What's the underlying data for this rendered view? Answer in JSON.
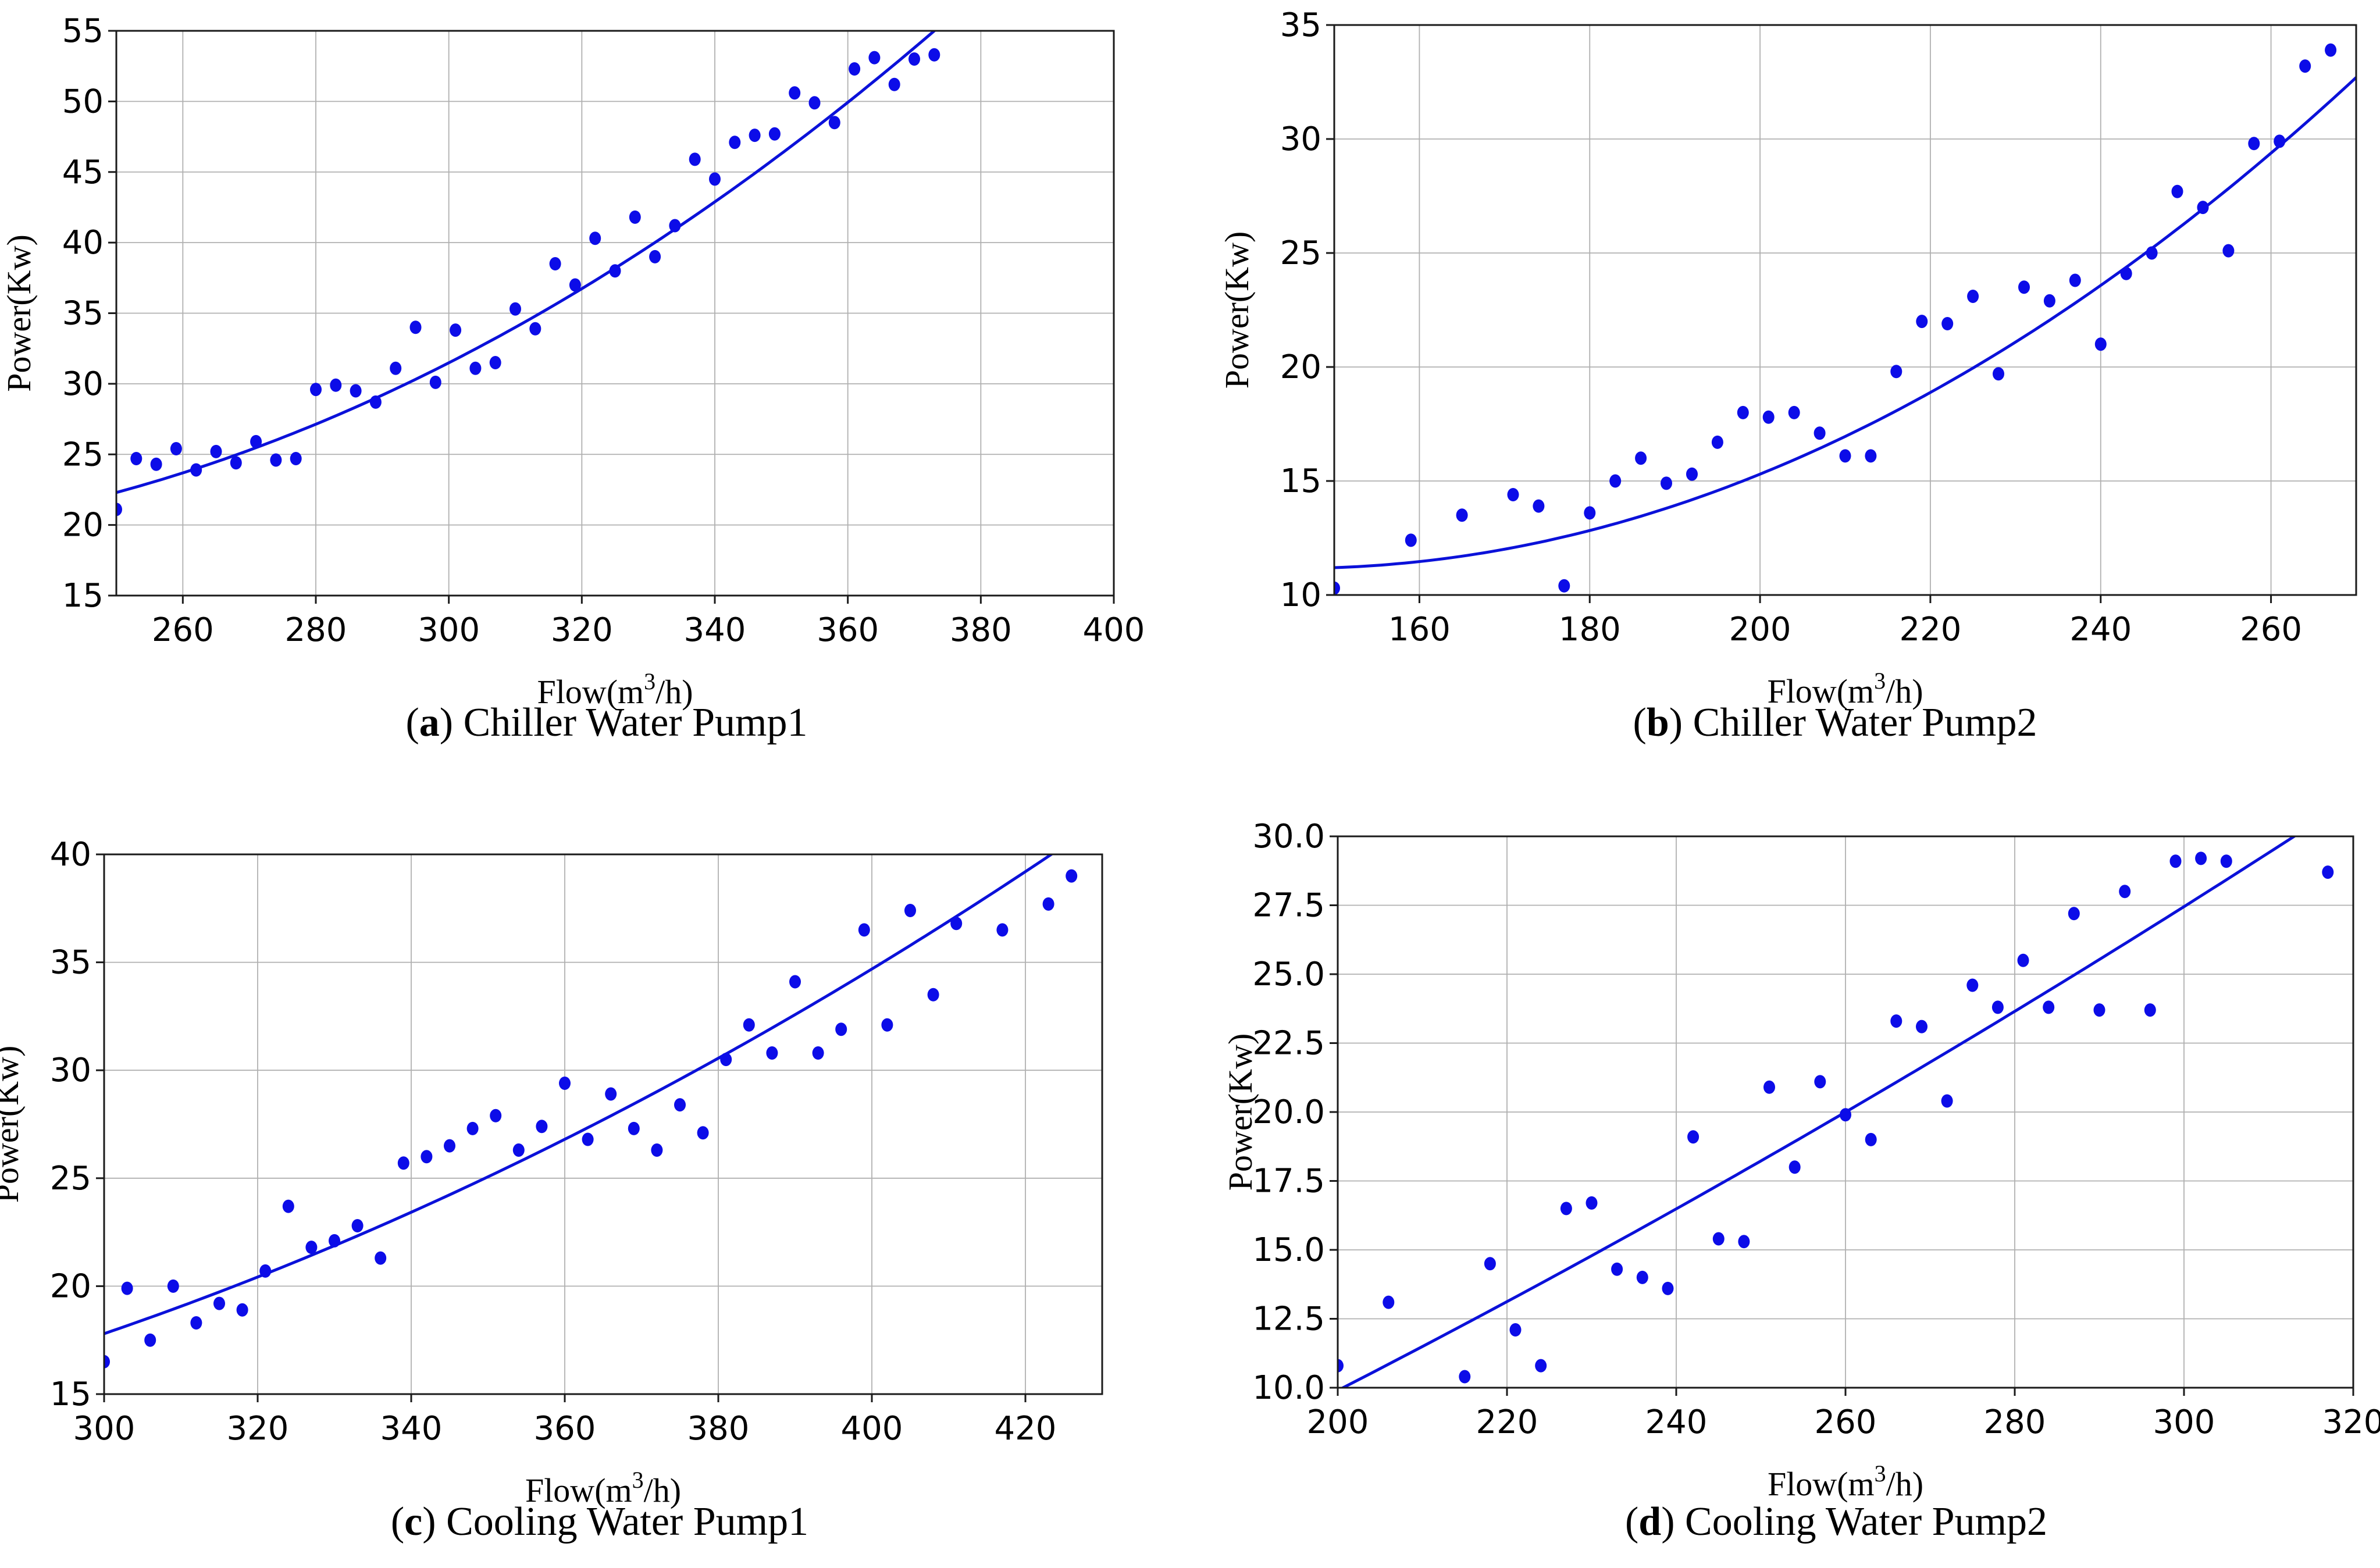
{
  "figure": {
    "background": "#ffffff",
    "grid": true,
    "legend": "none"
  },
  "colors": {
    "point": "#0c0ce8",
    "curve": "#0b11d9",
    "grid": "#b0b0b0",
    "spine": "#1a1a1a",
    "text": "#000000"
  },
  "chart_data": [
    {
      "id": "a",
      "type": "scatter",
      "caption": {
        "open": "(",
        "letter": "a",
        "close": ")",
        "title": " Chiller Water Pump1"
      },
      "xlabel": {
        "pre": "Flow(m",
        "sup": "3",
        "post": "/h)"
      },
      "ylabel": "Power(Kw)",
      "xlim": [
        250,
        400
      ],
      "ylim": [
        15,
        55
      ],
      "xticks": [
        260,
        280,
        300,
        320,
        340,
        360,
        380,
        400
      ],
      "xtick_labels": [
        "260",
        "280",
        "300",
        "320",
        "340",
        "360",
        "380",
        "400"
      ],
      "yticks": [
        15,
        20,
        25,
        30,
        35,
        40,
        45,
        50,
        55
      ],
      "ytick_labels": [
        "15",
        "20",
        "25",
        "30",
        "35",
        "40",
        "45",
        "50",
        "55"
      ],
      "fit": {
        "x0": 250,
        "a": 0.0011247,
        "b": 0.1275,
        "c": 22.3
      },
      "points": {
        "x": [
          250,
          253,
          256,
          259,
          262,
          265,
          268,
          271,
          274,
          277,
          280,
          283,
          286,
          289,
          292,
          295,
          298,
          301,
          304,
          307,
          310,
          313,
          316,
          319,
          322,
          325,
          328,
          331,
          334,
          337,
          340,
          343,
          346,
          349,
          352,
          355,
          358,
          361,
          364,
          367,
          370,
          373
        ],
        "y": [
          21.1,
          24.7,
          24.3,
          25.4,
          23.9,
          25.2,
          24.4,
          25.9,
          24.6,
          24.7,
          29.6,
          29.9,
          29.5,
          28.7,
          31.1,
          34.0,
          30.1,
          33.8,
          31.1,
          31.5,
          35.3,
          33.9,
          38.5,
          37.0,
          40.3,
          38.0,
          41.8,
          39.0,
          41.2,
          45.9,
          44.5,
          47.1,
          47.6,
          47.7,
          50.6,
          49.9,
          48.5,
          52.3,
          53.1,
          51.2,
          53.0,
          53.3
        ]
      }
    },
    {
      "id": "b",
      "type": "scatter",
      "caption": {
        "open": "(",
        "letter": "b",
        "close": ")",
        "title": " Chiller Water Pump2"
      },
      "xlabel": {
        "pre": "Flow(m",
        "sup": "3",
        "post": "/h)"
      },
      "ylabel": "Power(Kw)",
      "xlim": [
        150,
        270
      ],
      "ylim": [
        10,
        35
      ],
      "xticks": [
        160,
        180,
        200,
        220,
        240,
        260
      ],
      "xtick_labels": [
        "160",
        "180",
        "200",
        "220",
        "240",
        "260"
      ],
      "yticks": [
        10,
        15,
        20,
        25,
        30,
        35
      ],
      "ytick_labels": [
        "10",
        "15",
        "20",
        "25",
        "30",
        "35"
      ],
      "fit": {
        "x0": 150,
        "a": 0.001388,
        "b": 0.0126,
        "c": 11.2
      },
      "points": {
        "x": [
          150,
          159,
          165,
          171,
          174,
          177,
          180,
          183,
          186,
          189,
          192,
          195,
          198,
          201,
          204,
          207,
          210,
          213,
          216,
          219,
          222,
          225,
          228,
          231,
          234,
          237,
          240,
          243,
          246,
          249,
          252,
          255,
          258,
          261,
          264,
          267
        ],
        "y": [
          10.3,
          12.4,
          13.5,
          14.4,
          13.9,
          10.4,
          13.6,
          15.0,
          16.0,
          14.9,
          15.3,
          16.7,
          18.0,
          17.8,
          18.0,
          17.1,
          16.1,
          16.1,
          19.8,
          22.0,
          21.9,
          23.1,
          19.7,
          23.5,
          22.9,
          23.8,
          21.0,
          24.1,
          25.0,
          27.7,
          27.0,
          25.1,
          29.8,
          29.9,
          33.2,
          33.9
        ]
      }
    },
    {
      "id": "c",
      "type": "scatter",
      "caption": {
        "open": "(",
        "letter": "c",
        "close": ")",
        "title": " Cooling Water Pump1"
      },
      "xlabel": {
        "pre": "Flow(m",
        "sup": "3",
        "post": "/h)"
      },
      "ylabel": "Power(Kw)",
      "xlim": [
        300,
        430
      ],
      "ylim": [
        15,
        40
      ],
      "xticks": [
        300,
        320,
        340,
        360,
        380,
        400,
        420
      ],
      "xtick_labels": [
        "300",
        "320",
        "340",
        "360",
        "380",
        "400",
        "420"
      ],
      "yticks": [
        15,
        20,
        25,
        30,
        35,
        40
      ],
      "ytick_labels": [
        "15",
        "20",
        "25",
        "30",
        "35",
        "40"
      ],
      "fit": {
        "x0": 300,
        "a": 0.000472,
        "b": 0.1217,
        "c": 17.8
      },
      "points": {
        "x": [
          300,
          303,
          306,
          309,
          312,
          315,
          318,
          321,
          324,
          327,
          330,
          333,
          336,
          339,
          342,
          345,
          348,
          351,
          354,
          357,
          360,
          363,
          366,
          369,
          372,
          375,
          378,
          381,
          384,
          387,
          390,
          393,
          396,
          399,
          402,
          405,
          408,
          411,
          417,
          423,
          426
        ],
        "y": [
          16.5,
          19.9,
          17.5,
          20.0,
          18.3,
          19.2,
          18.9,
          20.7,
          23.7,
          21.8,
          22.1,
          22.8,
          21.3,
          25.7,
          26.0,
          26.5,
          27.3,
          27.9,
          26.3,
          27.4,
          29.4,
          26.8,
          28.9,
          27.3,
          26.3,
          28.4,
          27.1,
          30.5,
          32.1,
          30.8,
          34.1,
          30.8,
          31.9,
          36.5,
          32.1,
          37.4,
          33.5,
          36.8,
          36.5,
          37.7,
          39.0
        ]
      }
    },
    {
      "id": "d",
      "type": "scatter",
      "caption": {
        "open": "(",
        "letter": "d",
        "close": ")",
        "title": " Cooling Water Pump2"
      },
      "xlabel": {
        "pre": "Flow(m",
        "sup": "3",
        "post": "/h)"
      },
      "ylabel": "Power(Kw)",
      "xlim": [
        200,
        320
      ],
      "ylim": [
        10,
        30
      ],
      "xticks": [
        200,
        220,
        240,
        260,
        280,
        300,
        320
      ],
      "xtick_labels": [
        "200",
        "220",
        "240",
        "260",
        "280",
        "300",
        "320"
      ],
      "yticks": [
        10,
        12.5,
        15,
        17.5,
        20,
        22.5,
        25,
        27.5,
        30
      ],
      "ytick_labels": [
        "10.0",
        "12.5",
        "15.0",
        "17.5",
        "20.0",
        "22.5",
        "25.0",
        "27.5",
        "30.0"
      ],
      "fit": {
        "x0": 200,
        "a": 0.00018,
        "b": 0.1575,
        "c": 9.9
      },
      "points": {
        "x": [
          200,
          206,
          215,
          218,
          221,
          224,
          227,
          230,
          233,
          236,
          239,
          242,
          245,
          248,
          251,
          254,
          257,
          260,
          263,
          266,
          269,
          272,
          275,
          278,
          281,
          284,
          287,
          290,
          293,
          296,
          299,
          302,
          305,
          317
        ],
        "y": [
          10.8,
          13.1,
          10.4,
          14.5,
          12.1,
          10.8,
          16.5,
          16.7,
          14.3,
          14.0,
          13.6,
          19.1,
          15.4,
          15.3,
          20.9,
          18.0,
          21.1,
          19.9,
          19.0,
          23.3,
          23.1,
          20.4,
          24.6,
          23.8,
          25.5,
          23.8,
          27.2,
          23.7,
          28.0,
          23.7,
          29.1,
          29.2,
          29.1,
          28.7
        ]
      }
    }
  ]
}
